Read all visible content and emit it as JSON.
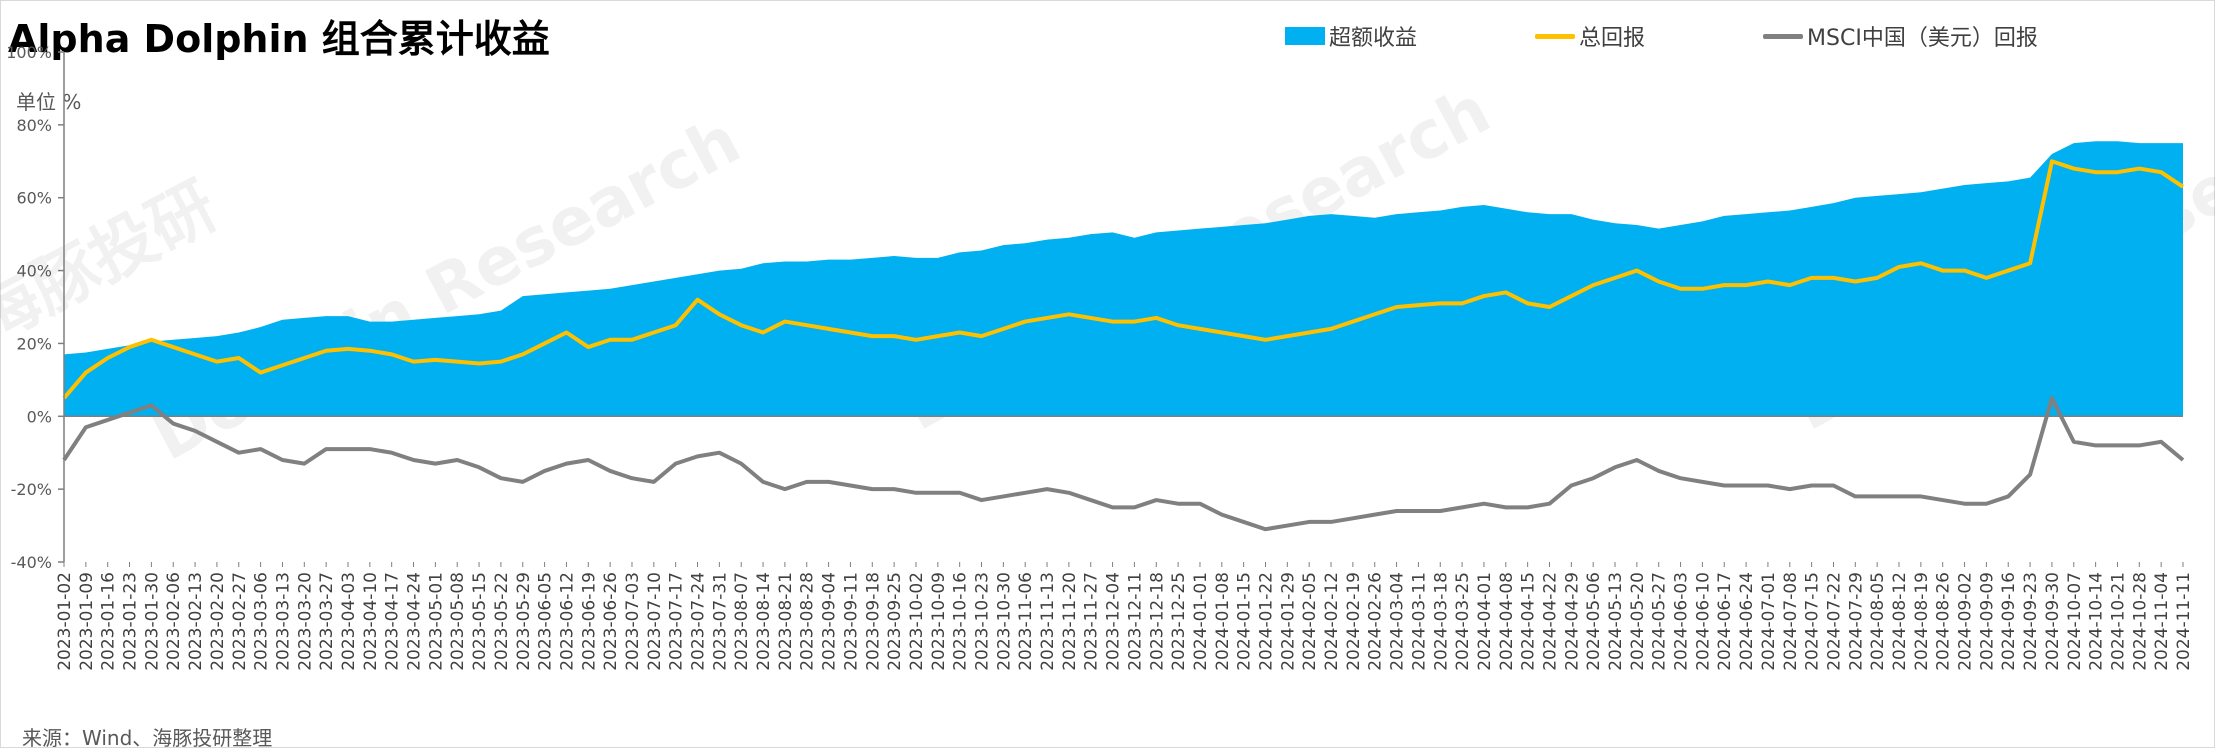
{
  "title": "Alpha Dolphin 组合累计收益",
  "unit_label": "单位   %",
  "source": "来源：Wind、海豚投研整理",
  "watermarks": [
    "海豚投研",
    "Dolphin Research"
  ],
  "colors": {
    "excess": "#00b0f0",
    "total": "#ffc000",
    "msci": "#808080"
  },
  "chart_data": {
    "type": "area",
    "title": "Alpha Dolphin 组合累计收益",
    "xlabel": "",
    "ylabel": "%",
    "ylim": [
      -40,
      100
    ],
    "yticks": [
      100,
      80,
      60,
      40,
      20,
      0,
      -20,
      -40
    ],
    "ytick_labels": [
      "100%",
      "80%",
      "60%",
      "40%",
      "20%",
      "0%",
      "-20%",
      "-40%"
    ],
    "grid": false,
    "legend_position": "top",
    "x_tick_labels": [
      "2023-01-02",
      "2023-01-09",
      "2023-01-16",
      "2023-01-23",
      "2023-01-30",
      "2023-02-06",
      "2023-02-13",
      "2023-02-20",
      "2023-02-27",
      "2023-03-06",
      "2023-03-13",
      "2023-03-20",
      "2023-03-27",
      "2023-04-03",
      "2023-04-10",
      "2023-04-17",
      "2023-04-24",
      "2023-05-01",
      "2023-05-08",
      "2023-05-15",
      "2023-05-22",
      "2023-05-29",
      "2023-06-05",
      "2023-06-12",
      "2023-06-19",
      "2023-06-26",
      "2023-07-03",
      "2023-07-10",
      "2023-07-17",
      "2023-07-24",
      "2023-07-31",
      "2023-08-07",
      "2023-08-14",
      "2023-08-21",
      "2023-08-28",
      "2023-09-04",
      "2023-09-11",
      "2023-09-18",
      "2023-09-25",
      "2023-10-02",
      "2023-10-09",
      "2023-10-16",
      "2023-10-23",
      "2023-10-30",
      "2023-11-06",
      "2023-11-13",
      "2023-11-20",
      "2023-11-27",
      "2023-12-04",
      "2023-12-11",
      "2023-12-18",
      "2023-12-25",
      "2024-01-01",
      "2024-01-08",
      "2024-01-15",
      "2024-01-22",
      "2024-01-29",
      "2024-02-05",
      "2024-02-12",
      "2024-02-19",
      "2024-02-26",
      "2024-03-04",
      "2024-03-11",
      "2024-03-18",
      "2024-03-25",
      "2024-04-01",
      "2024-04-08",
      "2024-04-15",
      "2024-04-22",
      "2024-04-29",
      "2024-05-06",
      "2024-05-13",
      "2024-05-20",
      "2024-05-27",
      "2024-06-03",
      "2024-06-10",
      "2024-06-17",
      "2024-06-24",
      "2024-07-01",
      "2024-07-08",
      "2024-07-15",
      "2024-07-22",
      "2024-07-29",
      "2024-08-05",
      "2024-08-12",
      "2024-08-19",
      "2024-08-26",
      "2024-09-02",
      "2024-09-09",
      "2024-09-16",
      "2024-09-23",
      "2024-09-30",
      "2024-10-07",
      "2024-10-14",
      "2024-10-21",
      "2024-10-28",
      "2024-11-04",
      "2024-11-11"
    ],
    "series": [
      {
        "name": "超额收益",
        "kind": "area",
        "color": "#00b0f0",
        "values": [
          17,
          17.5,
          18.5,
          19.5,
          20.5,
          21,
          21.5,
          22,
          23,
          24.5,
          26.5,
          27,
          27.5,
          27.5,
          26,
          26,
          26.5,
          27,
          27.5,
          28,
          29,
          33,
          33.5,
          34,
          34.5,
          35,
          36,
          37,
          38,
          39,
          40,
          40.5,
          42,
          42.5,
          42.5,
          43,
          43,
          43.5,
          44,
          43.5,
          43.5,
          45,
          45.5,
          47,
          47.5,
          48.5,
          49,
          50,
          50.5,
          49,
          50.5,
          51,
          51.5,
          52,
          52.5,
          53,
          54,
          55,
          55.5,
          55,
          54.5,
          55.5,
          56,
          56.5,
          57.5,
          58,
          57,
          56,
          55.5,
          55.5,
          54,
          53,
          52.5,
          51.5,
          52.5,
          53.5,
          55,
          55.5,
          56,
          56.5,
          57.5,
          58.5,
          60,
          60.5,
          61,
          61.5,
          62.5,
          63.5,
          64,
          64.5,
          65.5,
          72,
          75,
          75.5,
          75.5,
          75,
          75,
          75
        ]
      },
      {
        "name": "总回报",
        "kind": "line",
        "color": "#ffc000",
        "values": [
          5,
          12,
          16,
          19,
          21,
          19,
          17,
          15,
          16,
          12,
          14,
          16,
          18,
          18.5,
          18,
          17,
          15,
          15.5,
          15,
          14.5,
          15,
          17,
          20,
          23,
          19,
          21,
          21,
          23,
          25,
          32,
          28,
          25,
          23,
          26,
          25,
          24,
          23,
          22,
          22,
          21,
          22,
          23,
          22,
          24,
          26,
          27,
          28,
          27,
          26,
          26,
          27,
          25,
          24,
          23,
          22,
          21,
          22,
          23,
          24,
          26,
          28,
          30,
          30.5,
          31,
          31,
          33,
          34,
          31,
          30,
          33,
          36,
          38,
          40,
          37,
          35,
          35,
          36,
          36,
          37,
          36,
          38,
          38,
          37,
          38,
          41,
          42,
          40,
          40,
          38,
          40,
          42,
          70,
          68,
          67,
          67,
          68,
          67,
          63
        ]
      },
      {
        "name": "MSCI中国（美元）回报",
        "kind": "line",
        "color": "#808080",
        "values": [
          -12,
          -3,
          -1,
          1,
          3,
          -2,
          -4,
          -7,
          -10,
          -9,
          -12,
          -13,
          -9,
          -9,
          -9,
          -10,
          -12,
          -13,
          -12,
          -14,
          -17,
          -18,
          -15,
          -13,
          -12,
          -15,
          -17,
          -18,
          -13,
          -11,
          -10,
          -13,
          -18,
          -20,
          -18,
          -18,
          -19,
          -20,
          -20,
          -21,
          -21,
          -21,
          -23,
          -22,
          -21,
          -20,
          -21,
          -23,
          -25,
          -25,
          -23,
          -24,
          -24,
          -27,
          -29,
          -31,
          -30,
          -29,
          -29,
          -28,
          -27,
          -26,
          -26,
          -26,
          -25,
          -24,
          -25,
          -25,
          -24,
          -19,
          -17,
          -14,
          -12,
          -15,
          -17,
          -18,
          -19,
          -19,
          -19,
          -20,
          -19,
          -19,
          -22,
          -22,
          -22,
          -22,
          -23,
          -24,
          -24,
          -22,
          -16,
          5,
          -7,
          -8,
          -8,
          -8,
          -7,
          -12
        ]
      }
    ]
  }
}
